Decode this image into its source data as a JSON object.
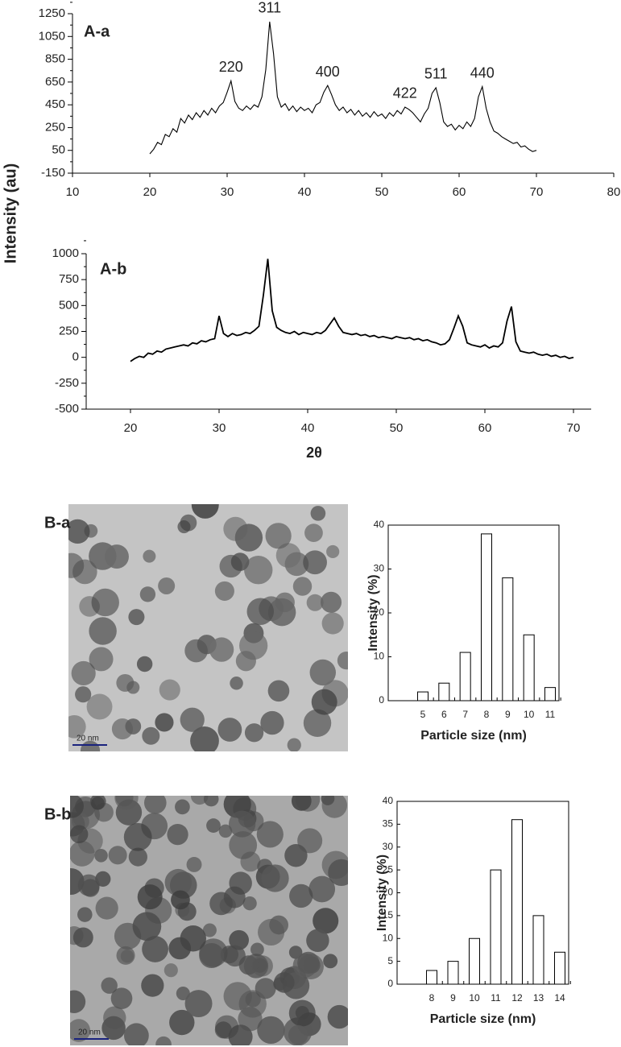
{
  "chart_data": [
    {
      "type": "line",
      "title": "A-a",
      "ylabel": "Intensity (au)",
      "color": "#000000",
      "xlim": [
        10,
        80
      ],
      "xticks": [
        10,
        20,
        30,
        40,
        50,
        60,
        70,
        80
      ],
      "ylim": [
        -150,
        1250
      ],
      "yticks": [
        -150,
        50,
        250,
        450,
        650,
        850,
        1050,
        1250
      ],
      "x": [
        20,
        20.5,
        21,
        21.5,
        22,
        22.5,
        23,
        23.5,
        24,
        24.5,
        25,
        25.5,
        26,
        26.5,
        27,
        27.5,
        28,
        28.5,
        29,
        29.5,
        30,
        30.5,
        31,
        31.5,
        32,
        32.5,
        33,
        33.5,
        34,
        34.5,
        35,
        35.5,
        36,
        36.5,
        37,
        37.5,
        38,
        38.5,
        39,
        39.5,
        40,
        40.5,
        41,
        41.5,
        42,
        42.5,
        43,
        43.5,
        44,
        44.5,
        45,
        45.5,
        46,
        46.5,
        47,
        47.5,
        48,
        48.5,
        49,
        49.5,
        50,
        50.5,
        51,
        51.5,
        52,
        52.5,
        53,
        53.5,
        54,
        54.5,
        55,
        55.5,
        56,
        56.5,
        57,
        57.5,
        58,
        58.5,
        59,
        59.5,
        60,
        60.5,
        61,
        61.5,
        62,
        62.5,
        63,
        63.5,
        64,
        64.5,
        65,
        65.5,
        66,
        66.5,
        67,
        67.5,
        68,
        68.5,
        69,
        69.5,
        70
      ],
      "values": [
        20,
        60,
        120,
        100,
        190,
        170,
        240,
        210,
        330,
        290,
        360,
        320,
        380,
        340,
        400,
        360,
        420,
        380,
        440,
        470,
        560,
        660,
        480,
        420,
        400,
        440,
        410,
        450,
        430,
        520,
        760,
        1180,
        900,
        520,
        430,
        460,
        400,
        440,
        390,
        430,
        400,
        420,
        380,
        450,
        470,
        560,
        620,
        540,
        450,
        400,
        430,
        380,
        410,
        360,
        400,
        350,
        380,
        340,
        390,
        350,
        370,
        330,
        380,
        350,
        400,
        370,
        430,
        410,
        380,
        340,
        300,
        370,
        420,
        550,
        600,
        470,
        300,
        260,
        280,
        230,
        270,
        240,
        300,
        260,
        330,
        520,
        610,
        420,
        300,
        220,
        200,
        170,
        150,
        130,
        110,
        120,
        80,
        90,
        60,
        40,
        50
      ],
      "annotations": [
        {
          "text": "220",
          "x": 30.5
        },
        {
          "text": "311",
          "x": 35.5
        },
        {
          "text": "400",
          "x": 43
        },
        {
          "text": "422",
          "x": 53
        },
        {
          "text": "511",
          "x": 57
        },
        {
          "text": "440",
          "x": 63
        }
      ]
    },
    {
      "type": "line",
      "title": "A-b",
      "xlabel": "2θ",
      "color": "#000000",
      "xlim": [
        15,
        72
      ],
      "xticks": [
        20,
        30,
        40,
        50,
        60,
        70
      ],
      "ylim": [
        -500,
        1000
      ],
      "yticks": [
        -500,
        -250,
        0,
        250,
        500,
        750,
        1000
      ],
      "x": [
        20,
        20.5,
        21,
        21.5,
        22,
        22.5,
        23,
        23.5,
        24,
        24.5,
        25,
        25.5,
        26,
        26.5,
        27,
        27.5,
        28,
        28.5,
        29,
        29.5,
        30,
        30.5,
        31,
        31.5,
        32,
        32.5,
        33,
        33.5,
        34,
        34.5,
        35,
        35.5,
        36,
        36.5,
        37,
        37.5,
        38,
        38.5,
        39,
        39.5,
        40,
        40.5,
        41,
        41.5,
        42,
        42.5,
        43,
        43.5,
        44,
        44.5,
        45,
        45.5,
        46,
        46.5,
        47,
        47.5,
        48,
        48.5,
        49,
        49.5,
        50,
        50.5,
        51,
        51.5,
        52,
        52.5,
        53,
        53.5,
        54,
        54.5,
        55,
        55.5,
        56,
        56.5,
        57,
        57.5,
        58,
        58.5,
        59,
        59.5,
        60,
        60.5,
        61,
        61.5,
        62,
        62.5,
        63,
        63.5,
        64,
        64.5,
        65,
        65.5,
        66,
        66.5,
        67,
        67.5,
        68,
        68.5,
        69,
        69.5,
        70
      ],
      "values": [
        -40,
        -10,
        10,
        0,
        40,
        30,
        60,
        50,
        80,
        90,
        100,
        110,
        120,
        110,
        140,
        130,
        160,
        150,
        170,
        180,
        400,
        230,
        200,
        230,
        210,
        220,
        240,
        230,
        260,
        300,
        600,
        950,
        450,
        290,
        260,
        240,
        230,
        250,
        220,
        240,
        230,
        220,
        240,
        230,
        260,
        320,
        380,
        300,
        240,
        230,
        220,
        230,
        210,
        220,
        200,
        210,
        190,
        200,
        190,
        180,
        200,
        190,
        180,
        190,
        170,
        180,
        160,
        170,
        150,
        140,
        120,
        130,
        170,
        280,
        400,
        300,
        140,
        120,
        110,
        100,
        120,
        90,
        110,
        100,
        140,
        350,
        490,
        150,
        60,
        50,
        40,
        50,
        30,
        20,
        30,
        10,
        20,
        0,
        10,
        -10,
        0
      ]
    },
    {
      "type": "bar",
      "xlabel": "Particle size (nm)",
      "ylabel": "Intensity (%)",
      "color": "#ffffff",
      "categories": [
        "5",
        "6",
        "7",
        "8",
        "9",
        "10",
        "11"
      ],
      "values": [
        2,
        4,
        11,
        38,
        28,
        15,
        3
      ],
      "ylim": [
        0,
        40
      ],
      "yticks": [
        0,
        10,
        20,
        30,
        40
      ]
    },
    {
      "type": "bar",
      "xlabel": "Particle size (nm)",
      "ylabel": "Intensity (%)",
      "color": "#ffffff",
      "categories": [
        "8",
        "9",
        "10",
        "11",
        "12",
        "13",
        "14"
      ],
      "values": [
        3,
        5,
        10,
        25,
        36,
        15,
        7
      ],
      "ylim": [
        0,
        40
      ],
      "yticks": [
        0,
        5,
        10,
        15,
        20,
        25,
        30,
        35,
        40
      ]
    }
  ],
  "images": [
    {
      "label": "B-a",
      "scale_bar": "20 nm"
    },
    {
      "label": "B-b",
      "scale_bar": "20 nm"
    }
  ]
}
